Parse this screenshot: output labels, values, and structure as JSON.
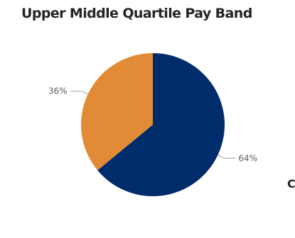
{
  "chart_data": {
    "type": "pie",
    "title": "Upper Middle Quartile Pay Band",
    "categories": [
      "",
      ""
    ],
    "values": [
      64,
      36
    ],
    "labels": [
      "64%",
      "36%"
    ],
    "colors": [
      "#002c6c",
      "#e18b36"
    ],
    "legend": "none"
  },
  "clipped_text": "C"
}
